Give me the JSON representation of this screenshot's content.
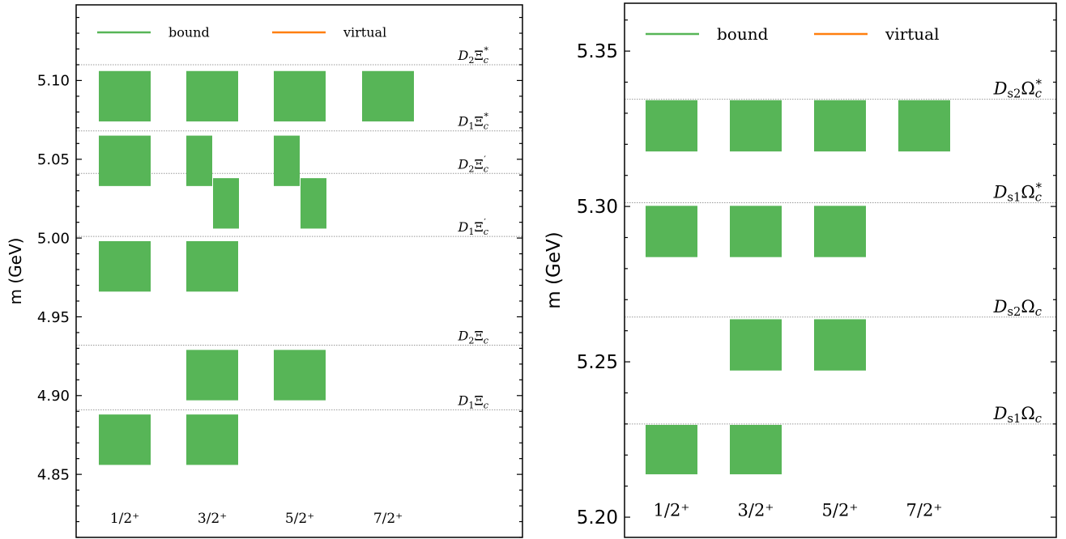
{
  "colors": {
    "bound": "#57b557",
    "virtual": "#ff7f0e",
    "threshold_line": "#999999"
  },
  "chart_data": [
    {
      "type": "range-bar",
      "ylabel": "m (GeV)",
      "ylim": [
        4.81,
        5.148
      ],
      "yticks": [
        4.85,
        4.9,
        4.95,
        5.0,
        5.05,
        5.1
      ],
      "ytick_labels": [
        "4.85",
        "4.90",
        "4.95",
        "5.00",
        "5.05",
        "5.10"
      ],
      "categories": [
        "1/2⁺",
        "3/2⁺",
        "5/2⁺",
        "7/2⁺"
      ],
      "legend": {
        "placement": "top",
        "entries": [
          {
            "label": "bound",
            "color": "#57b557"
          },
          {
            "label": "virtual",
            "color": "#ff7f0e"
          }
        ]
      },
      "thresholds": [
        {
          "base": "D",
          "base_sub": "2",
          "particle": "Ξ",
          "sub": "c",
          "sup": "*",
          "value": 5.11
        },
        {
          "base": "D",
          "base_sub": "1",
          "particle": "Ξ",
          "sub": "c",
          "sup": "*",
          "value": 5.068
        },
        {
          "base": "D",
          "base_sub": "2",
          "particle": "Ξ",
          "sub": "c",
          "sup": "′",
          "value": 5.041
        },
        {
          "base": "D",
          "base_sub": "1",
          "particle": "Ξ",
          "sub": "c",
          "sup": "′",
          "value": 5.001
        },
        {
          "base": "D",
          "base_sub": "2",
          "particle": "Ξ",
          "sub": "c",
          "sup": "",
          "value": 4.932
        },
        {
          "base": "D",
          "base_sub": "1",
          "particle": "Ξ",
          "sub": "c",
          "sup": "",
          "value": 4.891
        }
      ],
      "bars": [
        {
          "category": 0,
          "offset": 0,
          "low": 5.074,
          "high": 5.106
        },
        {
          "category": 1,
          "offset": 0,
          "low": 5.074,
          "high": 5.106
        },
        {
          "category": 2,
          "offset": 0,
          "low": 5.074,
          "high": 5.106
        },
        {
          "category": 3,
          "offset": 0,
          "low": 5.074,
          "high": 5.106
        },
        {
          "category": 0,
          "offset": 0,
          "low": 5.033,
          "high": 5.065
        },
        {
          "category": 1,
          "offset": -1,
          "low": 5.033,
          "high": 5.065
        },
        {
          "category": 1,
          "offset": 1,
          "low": 5.006,
          "high": 5.038
        },
        {
          "category": 2,
          "offset": -1,
          "low": 5.033,
          "high": 5.065
        },
        {
          "category": 2,
          "offset": 1,
          "low": 5.006,
          "high": 5.038
        },
        {
          "category": 0,
          "offset": 0,
          "low": 4.966,
          "high": 4.998
        },
        {
          "category": 1,
          "offset": 0,
          "low": 4.966,
          "high": 4.998
        },
        {
          "category": 1,
          "offset": 0,
          "low": 4.897,
          "high": 4.929
        },
        {
          "category": 2,
          "offset": 0,
          "low": 4.897,
          "high": 4.929
        },
        {
          "category": 0,
          "offset": 0,
          "low": 4.856,
          "high": 4.888
        },
        {
          "category": 1,
          "offset": 0,
          "low": 4.856,
          "high": 4.888
        }
      ]
    },
    {
      "type": "range-bar",
      "ylabel": "m (GeV)",
      "ylim": [
        5.1935,
        5.3654
      ],
      "yticks": [
        5.2,
        5.25,
        5.3,
        5.35
      ],
      "ytick_labels": [
        "5.20",
        "5.25",
        "5.30",
        "5.35"
      ],
      "categories": [
        "1/2⁺",
        "3/2⁺",
        "5/2⁺",
        "7/2⁺"
      ],
      "legend": {
        "placement": "top",
        "entries": [
          {
            "label": "bound",
            "color": "#57b557"
          },
          {
            "label": "virtual",
            "color": "#ff7f0e"
          }
        ]
      },
      "thresholds": [
        {
          "base": "D",
          "base_sub": "s2",
          "particle": "Ω",
          "sub": "c",
          "sup": "*",
          "value": 5.3345
        },
        {
          "base": "D",
          "base_sub": "s1",
          "particle": "Ω",
          "sub": "c",
          "sup": "*",
          "value": 5.3012
        },
        {
          "base": "D",
          "base_sub": "s2",
          "particle": "Ω",
          "sub": "c",
          "sup": "",
          "value": 5.2644
        },
        {
          "base": "D",
          "base_sub": "s1",
          "particle": "Ω",
          "sub": "c",
          "sup": "",
          "value": 5.23
        }
      ],
      "bars": [
        {
          "category": 0,
          "offset": 0,
          "low": 5.3177,
          "high": 5.3342
        },
        {
          "category": 1,
          "offset": 0,
          "low": 5.3177,
          "high": 5.3342
        },
        {
          "category": 2,
          "offset": 0,
          "low": 5.3177,
          "high": 5.3342
        },
        {
          "category": 3,
          "offset": 0,
          "low": 5.3177,
          "high": 5.3342
        },
        {
          "category": 0,
          "offset": 0,
          "low": 5.2837,
          "high": 5.3002
        },
        {
          "category": 1,
          "offset": 0,
          "low": 5.2837,
          "high": 5.3002
        },
        {
          "category": 2,
          "offset": 0,
          "low": 5.2837,
          "high": 5.3002
        },
        {
          "category": 1,
          "offset": 0,
          "low": 5.2472,
          "high": 5.2637
        },
        {
          "category": 2,
          "offset": 0,
          "low": 5.2472,
          "high": 5.2637
        },
        {
          "category": 0,
          "offset": 0,
          "low": 5.2138,
          "high": 5.2297
        },
        {
          "category": 1,
          "offset": 0,
          "low": 5.2138,
          "high": 5.2297
        }
      ]
    }
  ]
}
